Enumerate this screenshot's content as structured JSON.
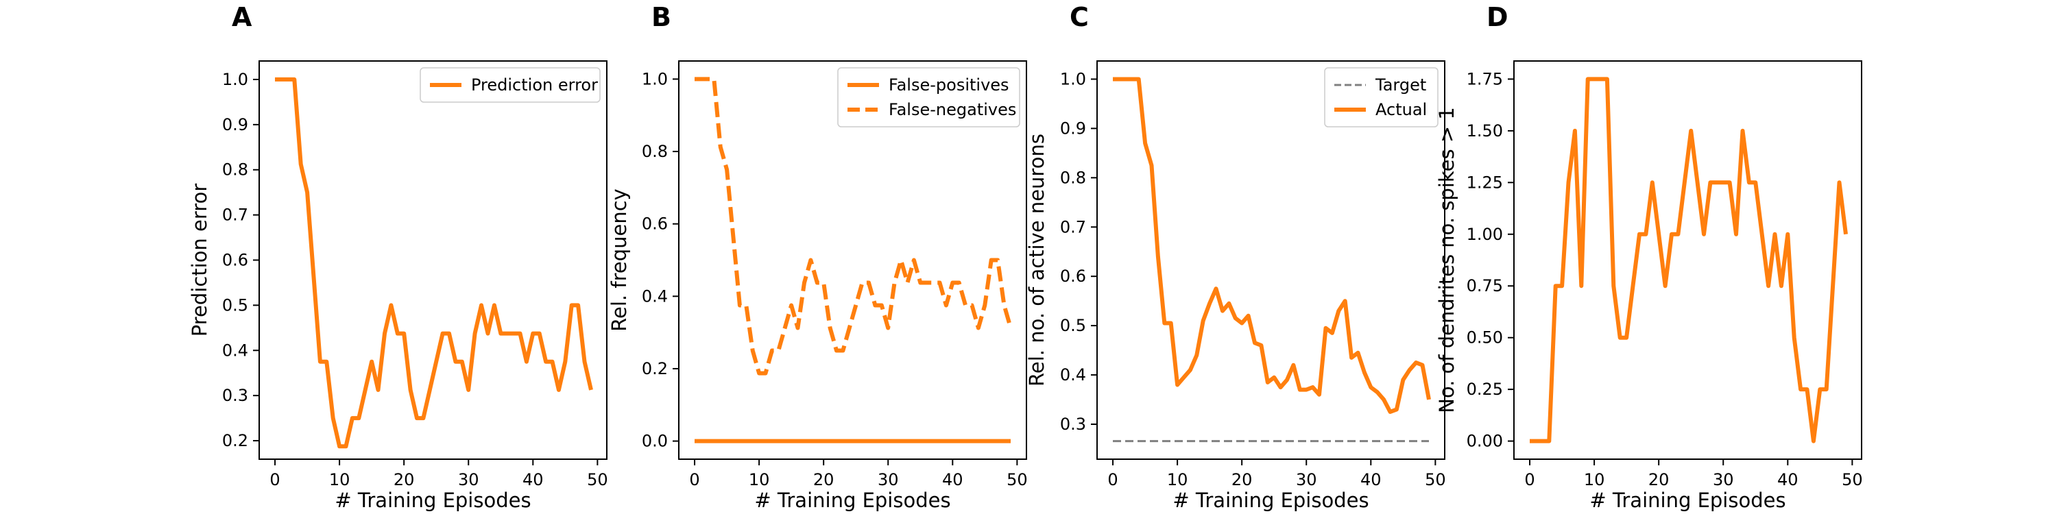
{
  "colors": {
    "series": "#ff7f0e",
    "target": "#808080",
    "axis": "#000000",
    "legend_border": "#cccccc"
  },
  "chart_data": [
    {
      "type": "line",
      "panel": "A",
      "xlabel": "# Training Episodes",
      "ylabel": "Prediction error",
      "xlim": [
        -2.45,
        51.45
      ],
      "ylim": [
        0.1591,
        1.0409
      ],
      "xticks": [
        0,
        10,
        20,
        30,
        40,
        50
      ],
      "yticks": [
        0.2,
        0.3,
        0.4,
        0.5,
        0.6,
        0.7,
        0.8,
        0.9,
        1.0
      ],
      "yticklabels": [
        "0.2",
        "0.3",
        "0.4",
        "0.5",
        "0.6",
        "0.7",
        "0.8",
        "0.9",
        "1.0"
      ],
      "legend_position": "upper right",
      "series": [
        {
          "name": "Prediction error",
          "style": "solid",
          "x": [
            0,
            1,
            2,
            3,
            4,
            5,
            6,
            7,
            8,
            9,
            10,
            11,
            12,
            13,
            14,
            15,
            16,
            17,
            18,
            19,
            20,
            21,
            22,
            23,
            24,
            25,
            26,
            27,
            28,
            29,
            30,
            31,
            32,
            33,
            34,
            35,
            36,
            37,
            38,
            39,
            40,
            41,
            42,
            43,
            44,
            45,
            46,
            47,
            48,
            49
          ],
          "values": [
            1.0,
            1.0,
            1.0,
            1.0,
            0.8125,
            0.75,
            0.5625,
            0.375,
            0.375,
            0.25,
            0.1875,
            0.1875,
            0.25,
            0.25,
            0.3125,
            0.375,
            0.3125,
            0.4375,
            0.5,
            0.4375,
            0.4375,
            0.3125,
            0.25,
            0.25,
            0.3125,
            0.375,
            0.4375,
            0.4375,
            0.375,
            0.375,
            0.3125,
            0.4375,
            0.5,
            0.4375,
            0.5,
            0.4375,
            0.4375,
            0.4375,
            0.4375,
            0.375,
            0.4375,
            0.4375,
            0.375,
            0.375,
            0.3125,
            0.375,
            0.5,
            0.5,
            0.375,
            0.3125
          ]
        }
      ]
    },
    {
      "type": "line",
      "panel": "B",
      "xlabel": "# Training Episodes",
      "ylabel": "Rel. frequency",
      "xlim": [
        -2.45,
        51.45
      ],
      "ylim": [
        -0.05,
        1.05
      ],
      "xticks": [
        0,
        10,
        20,
        30,
        40,
        50
      ],
      "yticks": [
        0.0,
        0.2,
        0.4,
        0.6,
        0.8,
        1.0
      ],
      "yticklabels": [
        "0.0",
        "0.2",
        "0.4",
        "0.6",
        "0.8",
        "1.0"
      ],
      "legend_position": "upper right",
      "series": [
        {
          "name": "False-positives",
          "style": "solid",
          "x": [
            0,
            1,
            2,
            3,
            4,
            5,
            6,
            7,
            8,
            9,
            10,
            11,
            12,
            13,
            14,
            15,
            16,
            17,
            18,
            19,
            20,
            21,
            22,
            23,
            24,
            25,
            26,
            27,
            28,
            29,
            30,
            31,
            32,
            33,
            34,
            35,
            36,
            37,
            38,
            39,
            40,
            41,
            42,
            43,
            44,
            45,
            46,
            47,
            48,
            49
          ],
          "values": [
            0,
            0,
            0,
            0,
            0,
            0,
            0,
            0,
            0,
            0,
            0,
            0,
            0,
            0,
            0,
            0,
            0,
            0,
            0,
            0,
            0,
            0,
            0,
            0,
            0,
            0,
            0,
            0,
            0,
            0,
            0,
            0,
            0,
            0,
            0,
            0,
            0,
            0,
            0,
            0,
            0,
            0,
            0,
            0,
            0,
            0,
            0,
            0,
            0,
            0
          ]
        },
        {
          "name": "False-negatives",
          "style": "dashed",
          "x": [
            0,
            1,
            2,
            3,
            4,
            5,
            6,
            7,
            8,
            9,
            10,
            11,
            12,
            13,
            14,
            15,
            16,
            17,
            18,
            19,
            20,
            21,
            22,
            23,
            24,
            25,
            26,
            27,
            28,
            29,
            30,
            31,
            32,
            33,
            34,
            35,
            36,
            37,
            38,
            39,
            40,
            41,
            42,
            43,
            44,
            45,
            46,
            47,
            48,
            49
          ],
          "values": [
            1.0,
            1.0,
            1.0,
            1.0,
            0.8125,
            0.75,
            0.5625,
            0.375,
            0.375,
            0.25,
            0.1875,
            0.1875,
            0.25,
            0.25,
            0.3125,
            0.375,
            0.3125,
            0.4375,
            0.5,
            0.4375,
            0.4375,
            0.3125,
            0.25,
            0.25,
            0.3125,
            0.375,
            0.4375,
            0.4375,
            0.375,
            0.375,
            0.3125,
            0.4375,
            0.5,
            0.4375,
            0.5,
            0.4375,
            0.4375,
            0.4375,
            0.4375,
            0.375,
            0.4375,
            0.4375,
            0.375,
            0.375,
            0.3125,
            0.375,
            0.5,
            0.5,
            0.375,
            0.3125
          ]
        }
      ]
    },
    {
      "type": "line",
      "panel": "C",
      "xlabel": "# Training Episodes",
      "ylabel": "Rel. no. of active neurons",
      "xlim": [
        -2.45,
        51.45
      ],
      "ylim": [
        0.2291,
        1.0368
      ],
      "xticks": [
        0,
        10,
        20,
        30,
        40,
        50
      ],
      "yticks": [
        0.3,
        0.4,
        0.5,
        0.6,
        0.7,
        0.8,
        0.9,
        1.0
      ],
      "yticklabels": [
        "0.3",
        "0.4",
        "0.5",
        "0.6",
        "0.7",
        "0.8",
        "0.9",
        "1.0"
      ],
      "legend_position": "upper right",
      "series": [
        {
          "name": "Target",
          "style": "dashed",
          "x": [
            0,
            49
          ],
          "values": [
            0.2658,
            0.2658
          ]
        },
        {
          "name": "Actual",
          "style": "solid",
          "x": [
            0,
            1,
            2,
            3,
            4,
            5,
            6,
            7,
            8,
            9,
            10,
            11,
            12,
            13,
            14,
            15,
            16,
            17,
            18,
            19,
            20,
            21,
            22,
            23,
            24,
            25,
            26,
            27,
            28,
            29,
            30,
            31,
            32,
            33,
            34,
            35,
            36,
            37,
            38,
            39,
            40,
            41,
            42,
            43,
            44,
            45,
            46,
            47,
            48,
            49
          ],
          "values": [
            1.0,
            1.0,
            1.0,
            1.0,
            1.0,
            0.87,
            0.825,
            0.64,
            0.505,
            0.505,
            0.38,
            0.395,
            0.41,
            0.44,
            0.51,
            0.545,
            0.575,
            0.53,
            0.545,
            0.515,
            0.505,
            0.52,
            0.465,
            0.46,
            0.385,
            0.395,
            0.375,
            0.39,
            0.42,
            0.37,
            0.37,
            0.375,
            0.36,
            0.495,
            0.485,
            0.53,
            0.55,
            0.435,
            0.445,
            0.405,
            0.375,
            0.365,
            0.35,
            0.325,
            0.33,
            0.39,
            0.41,
            0.425,
            0.42,
            0.35
          ]
        }
      ]
    },
    {
      "type": "line",
      "panel": "D",
      "xlabel": "# Training Episodes",
      "ylabel": "No. of dendrites no. spikes > 1",
      "xlim": [
        -2.45,
        51.45
      ],
      "ylim": [
        -0.0875,
        1.8375
      ],
      "xticks": [
        0,
        10,
        20,
        30,
        40,
        50
      ],
      "yticks": [
        0.0,
        0.25,
        0.5,
        0.75,
        1.0,
        1.25,
        1.5,
        1.75
      ],
      "yticklabels": [
        "0.00",
        "0.25",
        "0.50",
        "0.75",
        "1.00",
        "1.25",
        "1.50",
        "1.75"
      ],
      "legend_position": "none",
      "series": [
        {
          "style": "solid",
          "x": [
            0,
            1,
            2,
            3,
            4,
            5,
            6,
            7,
            8,
            9,
            10,
            11,
            12,
            13,
            14,
            15,
            16,
            17,
            18,
            19,
            20,
            21,
            22,
            23,
            24,
            25,
            26,
            27,
            28,
            29,
            30,
            31,
            32,
            33,
            34,
            35,
            36,
            37,
            38,
            39,
            40,
            41,
            42,
            43,
            44,
            45,
            46,
            47,
            48,
            49
          ],
          "values": [
            0,
            0,
            0,
            0,
            0.75,
            0.75,
            1.25,
            1.5,
            0.75,
            1.75,
            1.75,
            1.75,
            1.75,
            0.75,
            0.5,
            0.5,
            0.75,
            1.0,
            1.0,
            1.25,
            1.0,
            0.75,
            1.0,
            1.0,
            1.25,
            1.5,
            1.25,
            1.0,
            1.25,
            1.25,
            1.25,
            1.25,
            1.0,
            1.5,
            1.25,
            1.25,
            1.0,
            0.75,
            1.0,
            0.75,
            1.0,
            0.5,
            0.25,
            0.25,
            0.0,
            0.25,
            0.25,
            0.75,
            1.25,
            1.0
          ]
        }
      ]
    }
  ]
}
